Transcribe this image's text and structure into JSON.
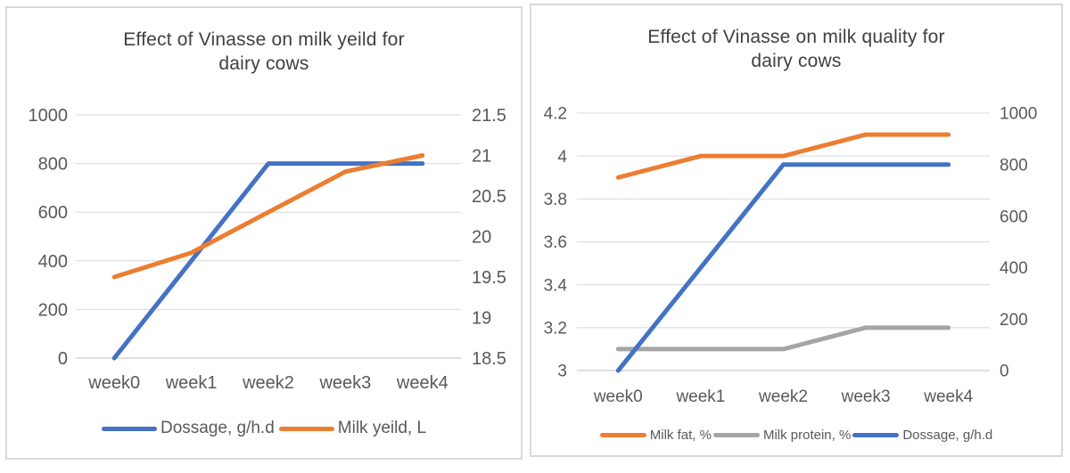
{
  "colors": {
    "blue": "#4472C4",
    "orange": "#ED7D31",
    "gray": "#A5A5A5",
    "gridline": "#D9D9D9",
    "axis_line": "#BFBFBF",
    "axis_text": "#595959",
    "title_text": "#404040",
    "panel_border": "#D9D9D9"
  },
  "chart_data": [
    {
      "type": "line",
      "title": "Effect of Vinasse on milk yeild for dairy cows",
      "categories": [
        "week0",
        "week1",
        "week2",
        "week3",
        "week4"
      ],
      "grid": true,
      "legend_position": "bottom",
      "axes": {
        "primary": {
          "side": "left",
          "min": 0,
          "max": 1000,
          "ticks": [
            "1000",
            "800",
            "600",
            "400",
            "200",
            "0"
          ]
        },
        "secondary": {
          "side": "right",
          "min": 18.5,
          "max": 21.5,
          "ticks": [
            "21.5",
            "21",
            "20.5",
            "20",
            "19.5",
            "19",
            "18.5"
          ]
        }
      },
      "series": [
        {
          "name": "Dossage, g/h.d",
          "color": "#4472C4",
          "axis": "primary",
          "values": [
            0,
            400,
            800,
            800,
            800
          ]
        },
        {
          "name": "Milk yeild, L",
          "color": "#ED7D31",
          "axis": "secondary",
          "values": [
            19.5,
            19.8,
            20.3,
            20.8,
            21
          ]
        }
      ]
    },
    {
      "type": "line",
      "title": "Effect of Vinasse on milk quality for dairy cows",
      "categories": [
        "week0",
        "week1",
        "week2",
        "week3",
        "week4"
      ],
      "grid": true,
      "legend_position": "bottom",
      "axes": {
        "primary": {
          "side": "left",
          "min": 3,
          "max": 4.2,
          "ticks": [
            "4.2",
            "4",
            "3.8",
            "3.6",
            "3.4",
            "3.2",
            "3"
          ]
        },
        "secondary": {
          "side": "right",
          "min": 0,
          "max": 1000,
          "ticks": [
            "1000",
            "800",
            "600",
            "400",
            "200",
            "0"
          ]
        }
      },
      "series": [
        {
          "name": "Milk fat, %",
          "color": "#ED7D31",
          "axis": "primary",
          "values": [
            3.9,
            4,
            4,
            4.1,
            4.1
          ]
        },
        {
          "name": "Milk protein, %",
          "color": "#A5A5A5",
          "axis": "primary",
          "values": [
            3.1,
            3.1,
            3.1,
            3.2,
            3.2
          ]
        },
        {
          "name": "Dossage, g/h.d",
          "color": "#4472C4",
          "axis": "secondary",
          "values": [
            0,
            400,
            800,
            800,
            800
          ]
        }
      ]
    }
  ]
}
